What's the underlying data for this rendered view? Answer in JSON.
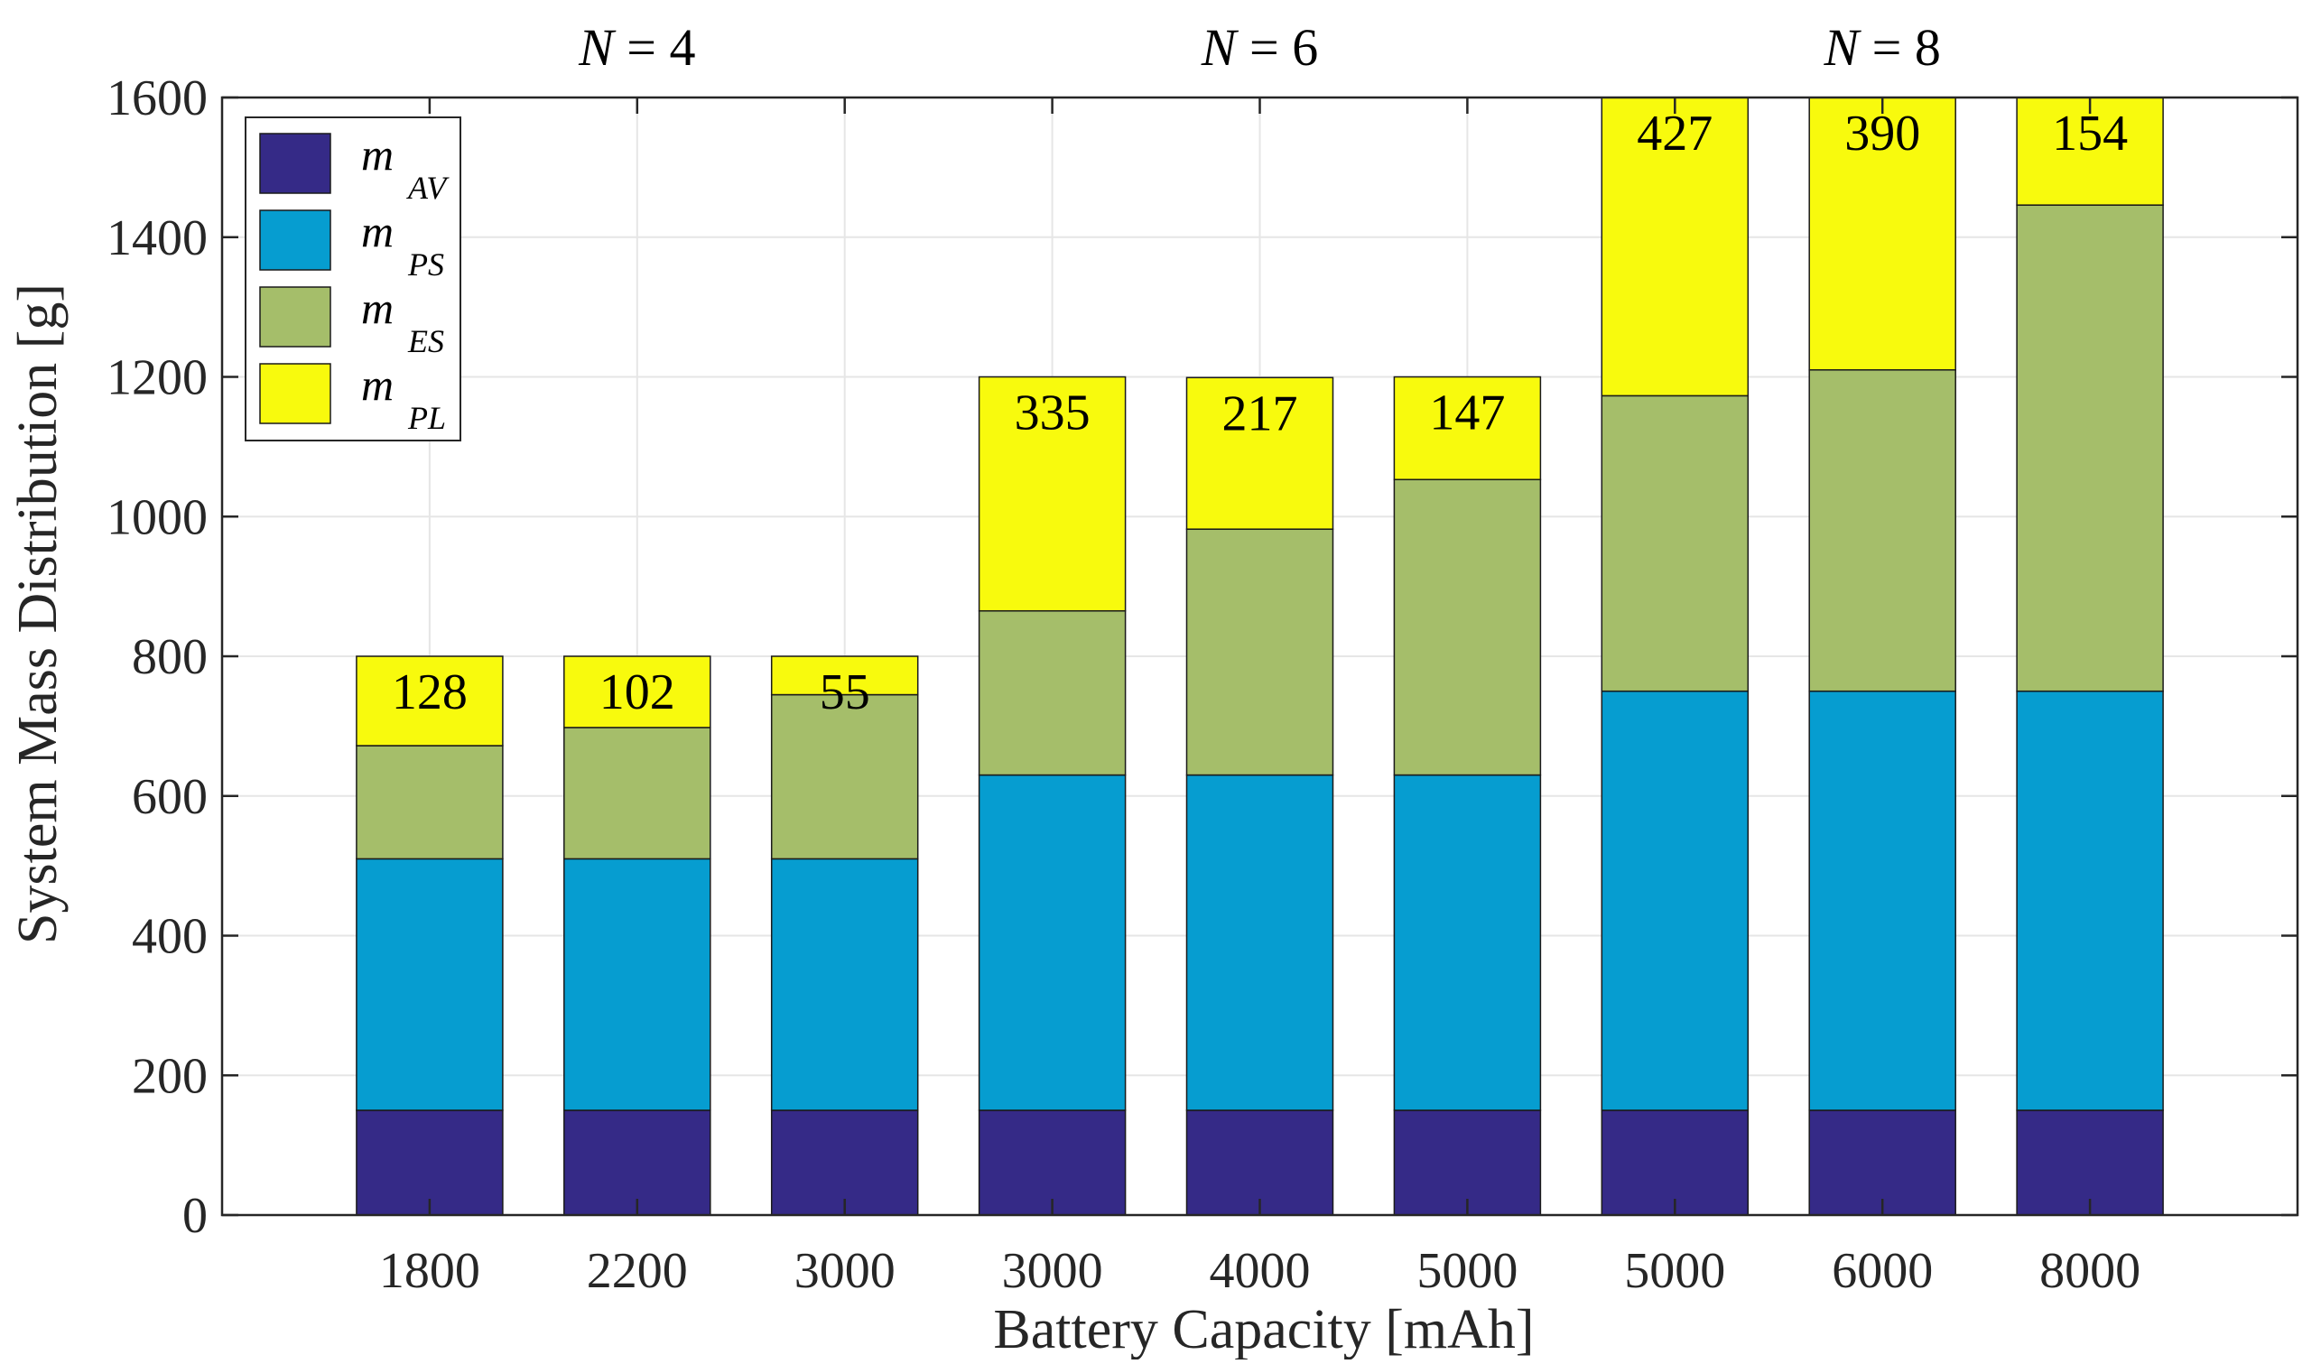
{
  "chart_data": {
    "type": "bar",
    "stacked": true,
    "categories": [
      "1800",
      "2200",
      "3000",
      "3000",
      "4000",
      "5000",
      "5000",
      "6000",
      "8000"
    ],
    "series": [
      {
        "name": "m_AV",
        "label_main": "m",
        "label_sub": "AV",
        "color": "#352A87",
        "values": [
          150,
          150,
          150,
          150,
          150,
          150,
          150,
          150,
          150
        ]
      },
      {
        "name": "m_PS",
        "label_main": "m",
        "label_sub": "PS",
        "color": "#069DD0",
        "values": [
          360,
          360,
          360,
          480,
          480,
          480,
          600,
          600,
          600
        ]
      },
      {
        "name": "m_ES",
        "label_main": "m",
        "label_sub": "ES",
        "color": "#A5BE6A",
        "values": [
          162,
          188,
          235,
          235,
          352,
          423,
          423,
          460,
          696
        ]
      },
      {
        "name": "m_PL",
        "label_main": "m",
        "label_sub": "PL",
        "color": "#F8FA0D",
        "values": [
          128,
          102,
          55,
          335,
          217,
          147,
          427,
          390,
          154
        ]
      }
    ],
    "data_labels": [
      "128",
      "102",
      "55",
      "335",
      "217",
      "147",
      "427",
      "390",
      "154"
    ],
    "group_labels": [
      {
        "text": "N = 4",
        "category_index": 1
      },
      {
        "text": "N = 6",
        "category_index": 4
      },
      {
        "text": "N = 8",
        "category_index": 7
      }
    ],
    "xlabel": "Battery Capacity [mAh]",
    "ylabel": "System Mass Distribution [g]",
    "ylim": [
      0,
      1600
    ],
    "yticks": [
      0,
      200,
      400,
      600,
      800,
      1000,
      1200,
      1400,
      1600
    ],
    "grid": true,
    "legend_position": "top-left"
  }
}
